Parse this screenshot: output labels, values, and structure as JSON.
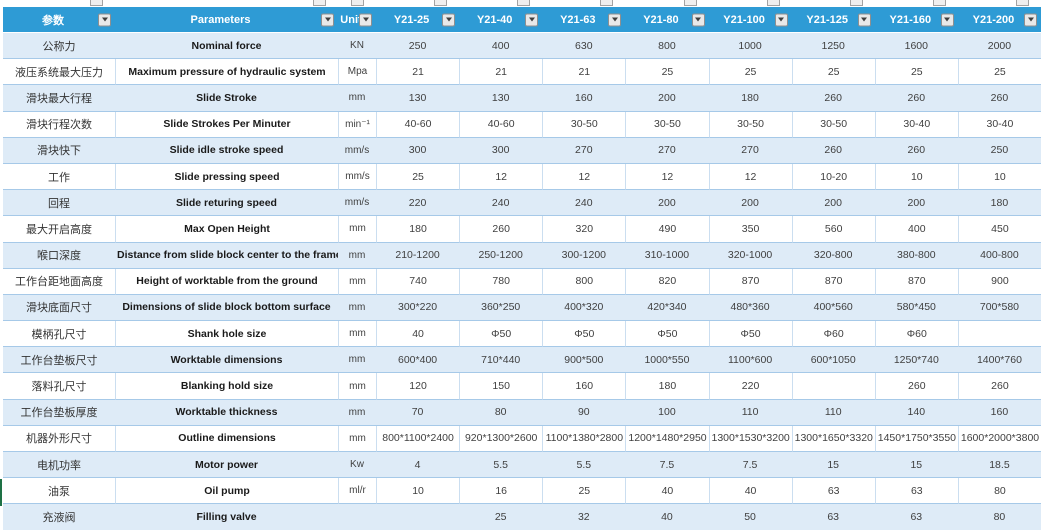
{
  "header": {
    "columns": [
      {
        "label": "参数"
      },
      {
        "label": "Parameters"
      },
      {
        "label": "Unit"
      },
      {
        "label": "Y21-25"
      },
      {
        "label": "Y21-40"
      },
      {
        "label": "Y21-63"
      },
      {
        "label": "Y21-80"
      },
      {
        "label": "Y21-100"
      },
      {
        "label": "Y21-125"
      },
      {
        "label": "Y21-160"
      },
      {
        "label": "Y21-200"
      }
    ]
  },
  "rows": [
    {
      "cn": "公称力",
      "en": "Nominal force",
      "unit": "KN",
      "values": [
        "250",
        "400",
        "630",
        "800",
        "1000",
        "1250",
        "1600",
        "2000"
      ]
    },
    {
      "cn": "液压系统最大压力",
      "en": "Maximum pressure of hydraulic system",
      "unit": "Mpa",
      "values": [
        "21",
        "21",
        "21",
        "25",
        "25",
        "25",
        "25",
        "25"
      ]
    },
    {
      "cn": "滑块最大行程",
      "en": "Slide Stroke",
      "unit": "mm",
      "values": [
        "130",
        "130",
        "160",
        "200",
        "180",
        "260",
        "260",
        "260"
      ]
    },
    {
      "cn": "滑块行程次数",
      "en": "Slide Strokes Per Minuter",
      "unit": "min⁻¹",
      "values": [
        "40-60",
        "40-60",
        "30-50",
        "30-50",
        "30-50",
        "30-50",
        "30-40",
        "30-40"
      ]
    },
    {
      "cn": "滑块快下",
      "en": "Slide idle stroke speed",
      "unit": "mm/s",
      "values": [
        "300",
        "300",
        "270",
        "270",
        "270",
        "260",
        "260",
        "250"
      ]
    },
    {
      "cn": "工作",
      "en": "Slide pressing speed",
      "unit": "mm/s",
      "values": [
        "25",
        "12",
        "12",
        "12",
        "12",
        "10-20",
        "10",
        "10"
      ]
    },
    {
      "cn": "回程",
      "en": "Slide returing speed",
      "unit": "mm/s",
      "values": [
        "220",
        "240",
        "240",
        "200",
        "200",
        "200",
        "200",
        "180"
      ]
    },
    {
      "cn": "最大开启高度",
      "en": "Max Open Height",
      "unit": "mm",
      "values": [
        "180",
        "260",
        "320",
        "490",
        "350",
        "560",
        "400",
        "450"
      ]
    },
    {
      "cn": "喉口深度",
      "en": "Distance from slide block center to the frame",
      "unit": "mm",
      "values": [
        "210-1200",
        "250-1200",
        "300-1200",
        "310-1000",
        "320-1000",
        "320-800",
        "380-800",
        "400-800"
      ]
    },
    {
      "cn": "工作台距地面高度",
      "en": "Height of worktable from the ground",
      "unit": "mm",
      "values": [
        "740",
        "780",
        "800",
        "820",
        "870",
        "870",
        "870",
        "900"
      ]
    },
    {
      "cn": "滑块底面尺寸",
      "en": "Dimensions of slide block bottom surface",
      "unit": "mm",
      "values": [
        "300*220",
        "360*250",
        "400*320",
        "420*340",
        "480*360",
        "400*560",
        "580*450",
        "700*580"
      ]
    },
    {
      "cn": "模柄孔尺寸",
      "en": "Shank hole size",
      "unit": "mm",
      "values": [
        "40",
        "Φ50",
        "Φ50",
        "Φ50",
        "Φ50",
        "Φ60",
        "Φ60",
        ""
      ]
    },
    {
      "cn": "工作台垫板尺寸",
      "en": "Worktable dimensions",
      "unit": "mm",
      "values": [
        "600*400",
        "710*440",
        "900*500",
        "1000*550",
        "1100*600",
        "600*1050",
        "1250*740",
        "1400*760"
      ]
    },
    {
      "cn": "落料孔尺寸",
      "en": "Blanking hold size",
      "unit": "mm",
      "values": [
        "120",
        "150",
        "160",
        "180",
        "220",
        "",
        "260",
        "260"
      ]
    },
    {
      "cn": "工作台垫板厚度",
      "en": "Worktable thickness",
      "unit": "mm",
      "values": [
        "70",
        "80",
        "90",
        "100",
        "110",
        "110",
        "140",
        "160"
      ]
    },
    {
      "cn": "机器外形尺寸",
      "en": "Outline dimensions",
      "unit": "mm",
      "values": [
        "800*1100*2400",
        "920*1300*2600",
        "1100*1380*2800",
        "1200*1480*2950",
        "1300*1530*3200",
        "1300*1650*3320",
        "1450*1750*3550",
        "1600*2000*3800"
      ]
    },
    {
      "cn": "电机功率",
      "en": "Motor power",
      "unit": "Kw",
      "values": [
        "4",
        "5.5",
        "5.5",
        "7.5",
        "7.5",
        "15",
        "15",
        "18.5"
      ]
    },
    {
      "cn": "油泵",
      "en": "Oil pump",
      "unit": "ml/r",
      "values": [
        "10",
        "16",
        "25",
        "40",
        "40",
        "63",
        "63",
        "80"
      ]
    },
    {
      "cn": "充液阀",
      "en": "Filling valve",
      "unit": "",
      "values": [
        "",
        "25",
        "32",
        "40",
        "50",
        "63",
        "63",
        "80"
      ]
    }
  ],
  "colors": {
    "header_bg": "#2E9BD5",
    "band_bg": "#DEEBF7",
    "grid_line": "#A6C9E8",
    "selection_green": "#1E7145"
  }
}
